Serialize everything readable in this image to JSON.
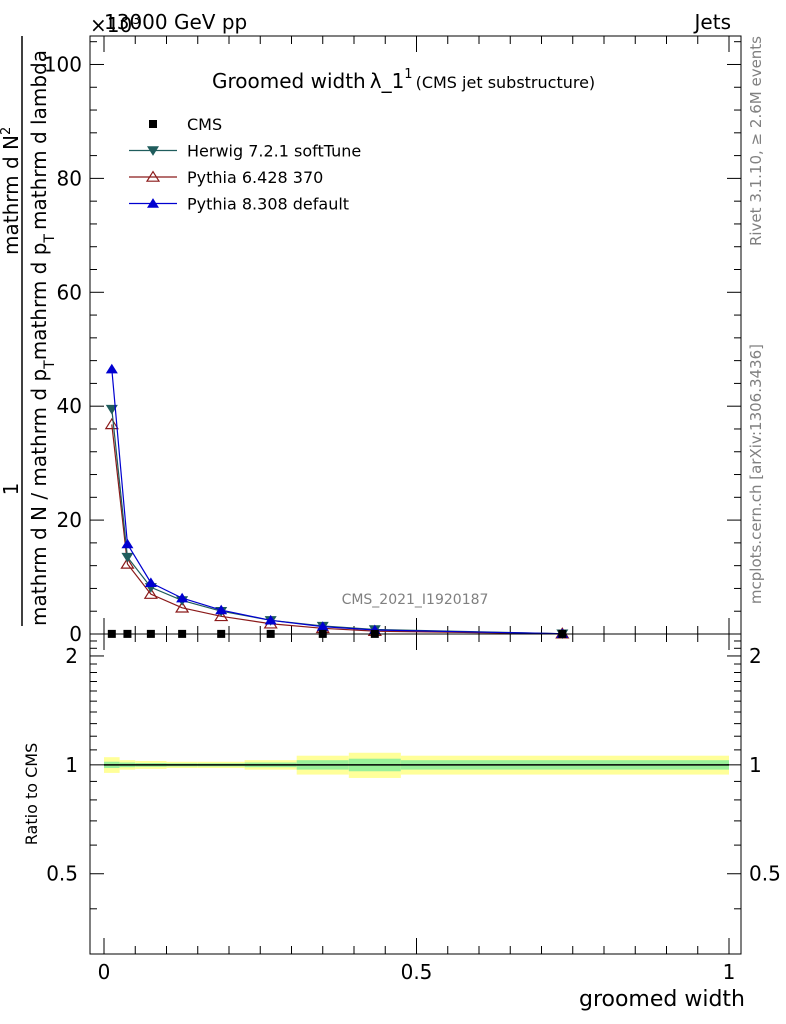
{
  "header": {
    "energy_label": "13000 GeV pp",
    "category_label": "Jets",
    "exponent_label": "×10",
    "exponent_power": "3"
  },
  "side_text": {
    "rivet": "Rivet 3.1.10, ≥ 2.6M events",
    "mcplots": "mcplots.cern.ch [arXiv:1306.3436]"
  },
  "chart_data": [
    {
      "type": "line",
      "title_main": "Groomed width",
      "title_lambda": "λ_1",
      "title_sup": "1",
      "title_sub": "(CMS jet substructure)",
      "ylabel_part1": "1",
      "ylabel_part2": "mathrm d N / mathrm d p",
      "ylabel_part3": "T",
      "ylabel_part4": "mathrm d N",
      "ylabel_part5": "2",
      "ylabel_part6": "mathrm d p",
      "ylabel_part7": "T",
      "ylabel_part8": "mathrm d lambda",
      "watermark": "CMS_2021_I1920187",
      "xlim": [
        0,
        1
      ],
      "ylim": [
        0,
        105
      ],
      "yticks": [
        0,
        20,
        40,
        60,
        80,
        100
      ],
      "ytick_labels": [
        "0",
        "20",
        "40",
        "60",
        "80",
        "100"
      ],
      "x_bin_centers": [
        0.0125,
        0.0375,
        0.075,
        0.125,
        0.1875,
        0.2667,
        0.35,
        0.4333,
        0.7333
      ],
      "series": [
        {
          "name": "CMS",
          "color": "#000000",
          "marker": "square",
          "values": [
            0.02,
            0.02,
            0.02,
            0.02,
            0.02,
            0.02,
            0.02,
            0.02,
            0.02
          ]
        },
        {
          "name": "Herwig 7.2.1 softTune",
          "color": "#1f5c5c",
          "marker": "triangle-down",
          "values": [
            39.5,
            13.5,
            8.2,
            5.9,
            4.0,
            2.4,
            1.4,
            0.8,
            0.05
          ]
        },
        {
          "name": "Pythia 6.428 370",
          "color": "#8b1a1a",
          "marker": "triangle-up-open",
          "values": [
            36.8,
            12.3,
            7.0,
            4.6,
            3.1,
            1.8,
            1.0,
            0.5,
            0.05
          ]
        },
        {
          "name": "Pythia 8.308 default",
          "color": "#0000d0",
          "marker": "triangle-up",
          "values": [
            46.5,
            15.8,
            9.0,
            6.3,
            4.2,
            2.4,
            1.3,
            0.7,
            0.05
          ]
        }
      ]
    },
    {
      "type": "area",
      "ylabel": "Ratio to CMS",
      "xlabel": "groomed width",
      "xlim": [
        0,
        1
      ],
      "ylim": [
        0.3,
        2.3
      ],
      "yticks": [
        0.5,
        1,
        2
      ],
      "ytick_labels": [
        "0.5",
        "1",
        "2"
      ],
      "xtick_labels": [
        "0",
        "0.5",
        "1"
      ],
      "xticks": [
        0,
        0.5,
        1
      ],
      "bin_edges": [
        0,
        0.025,
        0.05,
        0.1,
        0.15,
        0.225,
        0.3083,
        0.3917,
        0.475,
        1.0
      ],
      "inner_band": [
        0.02,
        0.015,
        0.012,
        0.01,
        0.01,
        0.015,
        0.03,
        0.04,
        0.03
      ],
      "outer_band": [
        0.05,
        0.03,
        0.025,
        0.02,
        0.02,
        0.03,
        0.06,
        0.08,
        0.06
      ],
      "inner_color": "#99f099",
      "outer_color": "#ffff99",
      "reference_value": 1
    }
  ]
}
